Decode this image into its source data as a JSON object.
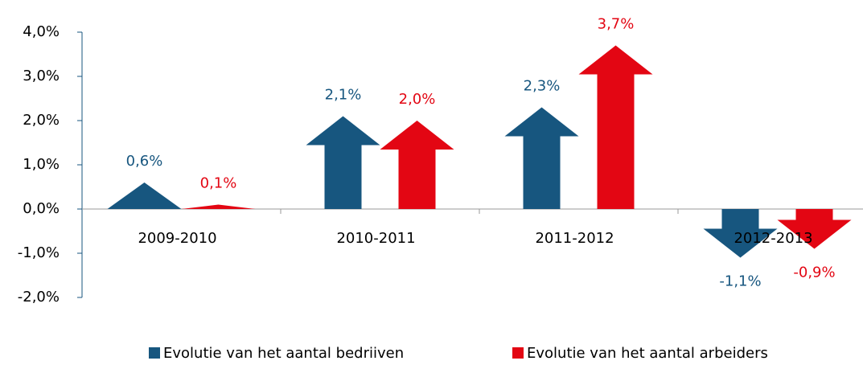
{
  "chart_data": {
    "type": "arrow-bar",
    "categories": [
      "2009-2010",
      "2010-2011",
      "2011-2012",
      "2012-2013"
    ],
    "series": [
      {
        "name": "Evolutie van het aantal bedriiven",
        "color": "#17567f",
        "values": [
          0.6,
          2.1,
          2.3,
          -1.1
        ],
        "value_labels": [
          "0,6%",
          "2,1%",
          "2,3%",
          "-1,1%"
        ]
      },
      {
        "name": "Evolutie van het aantal arbeiders",
        "color": "#e30613",
        "values": [
          0.1,
          2.0,
          3.7,
          -0.9
        ],
        "value_labels": [
          "0,1%",
          "2,0%",
          "3,7%",
          "-0,9%"
        ]
      }
    ],
    "ylim": [
      -2,
      4
    ],
    "yticks": [
      {
        "value": -2,
        "label": "-2,0%"
      },
      {
        "value": -1,
        "label": "-1,0%"
      },
      {
        "value": 0,
        "label": "0,0%"
      },
      {
        "value": 1,
        "label": "1,0%"
      },
      {
        "value": 2,
        "label": "2,0%"
      },
      {
        "value": 3,
        "label": "3,0%"
      },
      {
        "value": 4,
        "label": "4,0%"
      }
    ],
    "legend": "bottom"
  }
}
